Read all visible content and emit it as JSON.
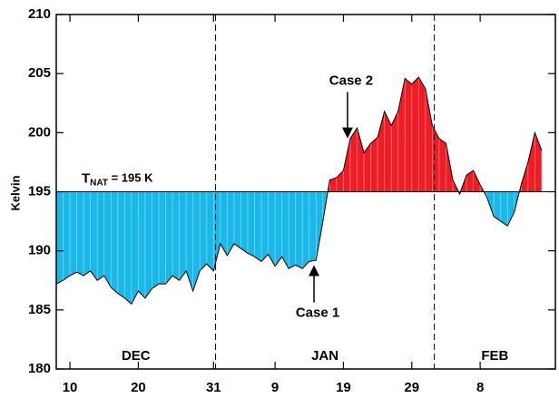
{
  "chart_data": {
    "type": "threshold_area",
    "y_label": "Kelvin",
    "x": [
      8,
      9,
      10,
      11,
      12,
      13,
      14,
      15,
      16,
      17,
      18,
      19,
      20,
      21,
      22,
      23,
      24,
      25,
      26,
      27,
      28,
      29,
      30,
      31,
      32,
      33,
      34,
      35,
      36,
      37,
      38,
      39,
      40,
      41,
      42,
      43,
      44,
      45,
      46,
      47,
      48,
      49,
      50,
      51,
      52,
      53,
      54,
      55,
      56,
      57,
      58,
      59,
      60,
      61,
      62,
      63,
      64,
      65,
      66,
      67,
      68,
      69,
      70,
      71,
      72,
      73,
      74,
      75,
      76,
      77,
      78,
      79
    ],
    "values": [
      187.2,
      187.5,
      187.9,
      188.2,
      187.9,
      188.3,
      187.5,
      187.9,
      186.9,
      186.4,
      186.0,
      185.5,
      186.6,
      186.0,
      186.8,
      187.2,
      187.2,
      187.9,
      187.5,
      188.3,
      186.6,
      188.3,
      188.9,
      188.3,
      190.6,
      189.6,
      190.6,
      190.2,
      189.8,
      189.5,
      189.1,
      189.7,
      188.7,
      189.5,
      188.5,
      188.8,
      188.5,
      189.1,
      189.2,
      192.5,
      196.0,
      196.2,
      196.8,
      199.5,
      200.4,
      198.3,
      199.1,
      199.6,
      201.8,
      200.6,
      201.8,
      204.6,
      204.1,
      204.7,
      203.7,
      200.6,
      199.5,
      199.1,
      196.0,
      194.8,
      196.4,
      196.8,
      195.6,
      194.5,
      192.9,
      192.5,
      192.1,
      193.3,
      195.6,
      197.5,
      200.0,
      198.5
    ],
    "threshold": 195,
    "threshold_label": {
      "main": "T",
      "sub": "NAT",
      "rest": " = 195 K"
    },
    "above_color": "#ee1c24",
    "below_color": "#1ab8e8",
    "xlim": [
      8,
      81
    ],
    "xticks": [
      10,
      20,
      {
        "value": 31,
        "label": "31"
      },
      {
        "value": 40,
        "label": "9"
      },
      {
        "value": 50,
        "label": "19"
      },
      {
        "value": 60,
        "label": "29"
      },
      {
        "value": 70,
        "label": "8"
      }
    ],
    "ylim": [
      180,
      210
    ],
    "yticks": [
      180,
      185,
      190,
      195,
      200,
      205,
      210
    ],
    "dividers": [
      31.3,
      63.3
    ],
    "months": [
      "DEC",
      "JAN",
      "FEB"
    ],
    "annotations": [
      {
        "text": "Case 1",
        "x": 45.7,
        "y": 189.0
      },
      {
        "text": "Case 2",
        "x": 50.6,
        "y": 199.3
      }
    ]
  }
}
